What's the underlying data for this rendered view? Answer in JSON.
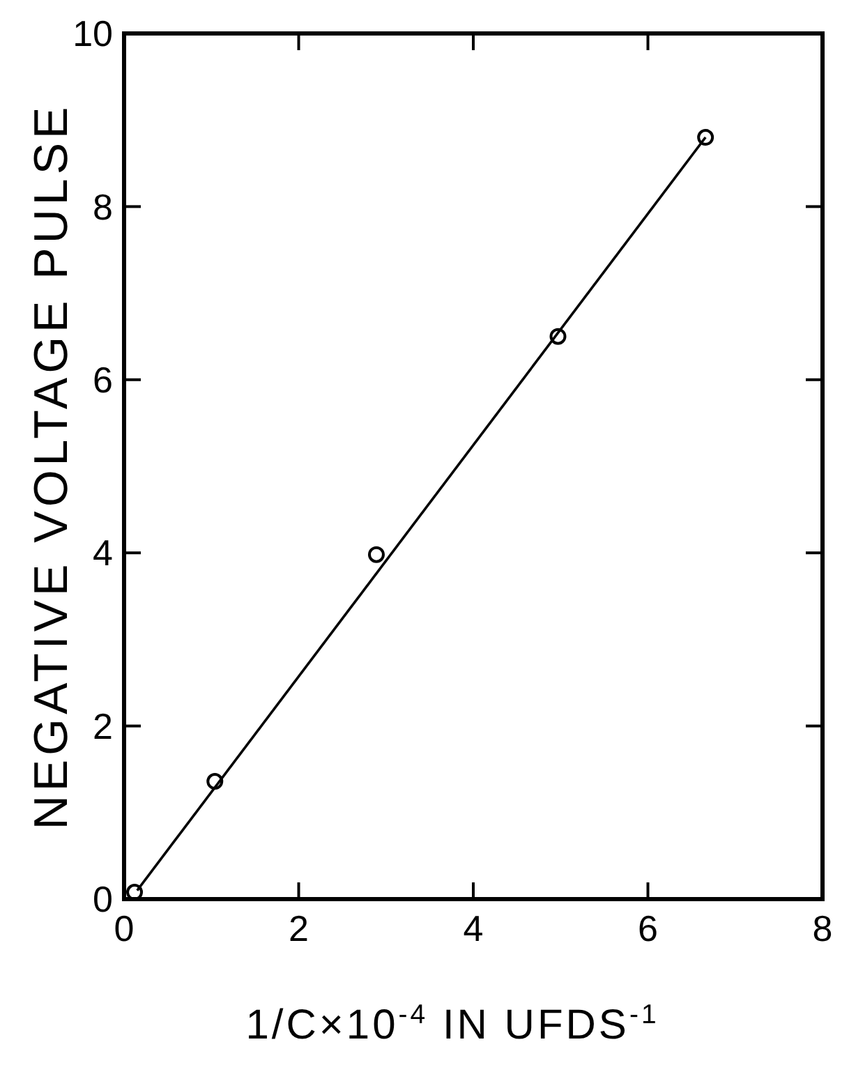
{
  "chart_data": {
    "type": "scatter",
    "xlabel": "1/C×10$^{-4}$ IN UFDS$^{-1}$",
    "ylabel": "NEGATIVE VOLTAGE PULSE",
    "xlim": [
      0,
      8
    ],
    "ylim": [
      0,
      10
    ],
    "xticks": [
      0,
      2,
      4,
      6,
      8
    ],
    "yticks": [
      0,
      2,
      4,
      6,
      8,
      10
    ],
    "grid": false,
    "series": [
      {
        "color": "#000000",
        "marker": "circle",
        "x": [
          0.12,
          1.04,
          2.89,
          4.97,
          6.66
        ],
        "values": [
          0.08,
          1.36,
          3.98,
          6.5,
          8.8
        ]
      },
      {
        "type": "line",
        "color": "#000000",
        "marker": "none",
        "line_style": "solid",
        "x": [
          0.15,
          6.66
        ],
        "values": [
          0.1,
          8.8
        ]
      }
    ]
  }
}
